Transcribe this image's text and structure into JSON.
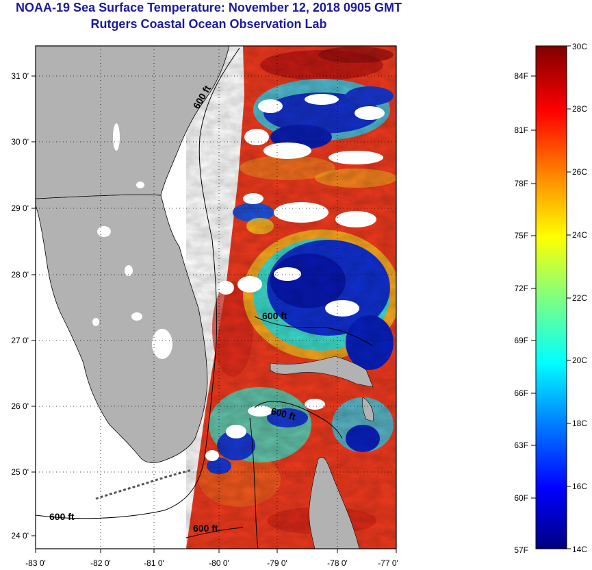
{
  "header": {
    "title": "NOAA-19 Sea Surface Temperature:  November 12, 2018 0905 GMT",
    "subtitle": "Rutgers Coastal Ocean Observation Lab"
  },
  "map": {
    "x_ticks": [
      "-83 0'",
      "-82 0'",
      "-81 0'",
      "-80 0'",
      "-79 0'",
      "-78 0'",
      "-77 0'"
    ],
    "y_ticks": [
      "31 0'",
      "30 0'",
      "29 0'",
      "28 0'",
      "27 0'",
      "26 0'",
      "25 0'",
      "24 0'"
    ],
    "contour_labels": [
      "600 ft",
      "600 ft",
      "600 ft",
      "600 ft",
      "600 ft"
    ],
    "land_color": "#b2b2b2",
    "no_data_color": "#ffffff"
  },
  "colorbar": {
    "fahrenheit": [
      "84F",
      "81F",
      "78F",
      "75F",
      "72F",
      "69F",
      "66F",
      "63F",
      "60F",
      "57F"
    ],
    "celsius": [
      "30C",
      "28C",
      "26C",
      "24C",
      "22C",
      "20C",
      "18C",
      "16C",
      "14C"
    ],
    "range_c": [
      14,
      30
    ],
    "colors": [
      "#000080",
      "#0000ff",
      "#0080ff",
      "#00ffff",
      "#80ff80",
      "#ffff00",
      "#ff8000",
      "#ff0000",
      "#800000"
    ]
  }
}
